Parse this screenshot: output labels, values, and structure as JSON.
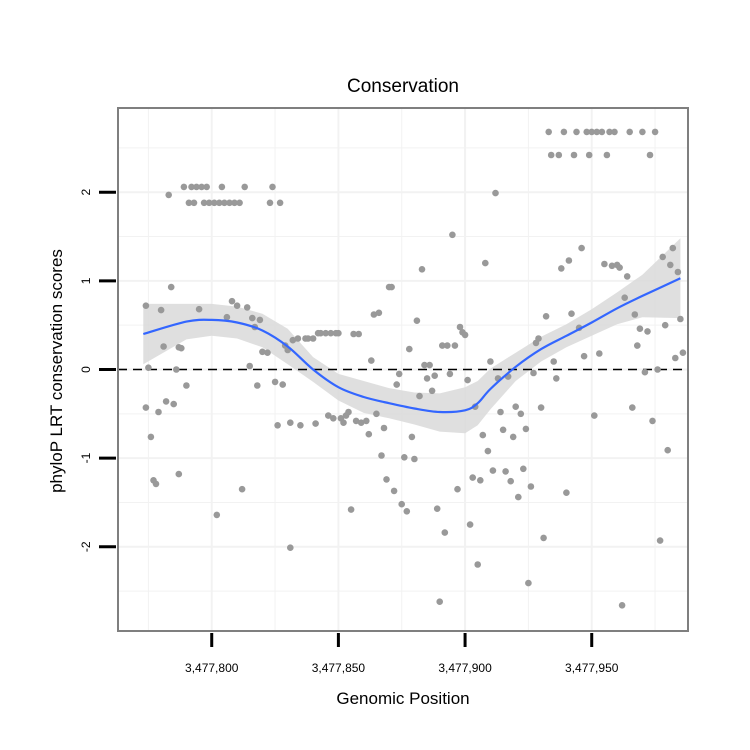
{
  "chart_data": {
    "type": "scatter",
    "title": "Conservation",
    "xlabel": "Genomic Position",
    "ylabel": "phyloP LRT conservation scores",
    "xlim": [
      3477763,
      3477988
    ],
    "ylim": [
      -2.95,
      2.95
    ],
    "x_ticks": [
      3477800,
      3477850,
      3477900,
      3477950
    ],
    "x_tick_labels": [
      "3,477,800",
      "3,477,850",
      "3,477,900",
      "3,477,950"
    ],
    "y_ticks": [
      -2,
      -1,
      0,
      1,
      2
    ],
    "y_tick_labels": [
      "-2",
      "-1",
      "0",
      "1",
      "2"
    ],
    "grid": true,
    "reference_line": {
      "y": 0,
      "style": "dashed"
    },
    "colors": {
      "points": "#999999",
      "smooth": "#3366ff",
      "band": "#d9d9d9",
      "panel_border": "#7f7f7f",
      "grid": "#f2f2f2"
    },
    "points": [
      [
        3477774,
        0.72
      ],
      [
        3477774,
        -0.43
      ],
      [
        3477775,
        0.02
      ],
      [
        3477776,
        -0.76
      ],
      [
        3477777,
        -1.25
      ],
      [
        3477778,
        -1.29
      ],
      [
        3477779,
        -0.48
      ],
      [
        3477780,
        0.67
      ],
      [
        3477781,
        0.26
      ],
      [
        3477782,
        -0.36
      ],
      [
        3477783,
        1.97
      ],
      [
        3477784,
        0.93
      ],
      [
        3477785,
        -0.39
      ],
      [
        3477786,
        0.0
      ],
      [
        3477787,
        0.25
      ],
      [
        3477787,
        -1.18
      ],
      [
        3477788,
        0.24
      ],
      [
        3477789,
        2.06
      ],
      [
        3477790,
        -0.18
      ],
      [
        3477791,
        1.88
      ],
      [
        3477792,
        2.06
      ],
      [
        3477793,
        1.88
      ],
      [
        3477794,
        2.06
      ],
      [
        3477795,
        0.68
      ],
      [
        3477796,
        2.06
      ],
      [
        3477797,
        1.88
      ],
      [
        3477798,
        2.06
      ],
      [
        3477799,
        1.88
      ],
      [
        3477801,
        1.88
      ],
      [
        3477802,
        -1.64
      ],
      [
        3477803,
        1.88
      ],
      [
        3477804,
        2.06
      ],
      [
        3477805,
        1.88
      ],
      [
        3477806,
        0.59
      ],
      [
        3477807,
        1.88
      ],
      [
        3477808,
        0.77
      ],
      [
        3477809,
        1.88
      ],
      [
        3477810,
        0.72
      ],
      [
        3477811,
        1.88
      ],
      [
        3477812,
        -1.35
      ],
      [
        3477813,
        2.06
      ],
      [
        3477814,
        0.7
      ],
      [
        3477815,
        0.04
      ],
      [
        3477816,
        0.58
      ],
      [
        3477817,
        0.48
      ],
      [
        3477818,
        -0.18
      ],
      [
        3477819,
        0.56
      ],
      [
        3477820,
        0.2
      ],
      [
        3477822,
        0.19
      ],
      [
        3477823,
        1.88
      ],
      [
        3477824,
        2.06
      ],
      [
        3477825,
        -0.14
      ],
      [
        3477826,
        -0.63
      ],
      [
        3477827,
        1.88
      ],
      [
        3477828,
        -0.17
      ],
      [
        3477829,
        0.27
      ],
      [
        3477830,
        0.22
      ],
      [
        3477831,
        -2.01
      ],
      [
        3477831,
        -0.6
      ],
      [
        3477832,
        0.33
      ],
      [
        3477834,
        0.35
      ],
      [
        3477835,
        -0.63
      ],
      [
        3477837,
        0.35
      ],
      [
        3477838,
        0.35
      ],
      [
        3477840,
        0.35
      ],
      [
        3477841,
        -0.61
      ],
      [
        3477842,
        0.41
      ],
      [
        3477843,
        0.41
      ],
      [
        3477845,
        0.41
      ],
      [
        3477846,
        -0.52
      ],
      [
        3477847,
        0.41
      ],
      [
        3477848,
        -0.55
      ],
      [
        3477849,
        0.41
      ],
      [
        3477850,
        0.41
      ],
      [
        3477851,
        -0.55
      ],
      [
        3477852,
        -0.6
      ],
      [
        3477853,
        -0.52
      ],
      [
        3477854,
        -0.48
      ],
      [
        3477855,
        -1.58
      ],
      [
        3477856,
        0.4
      ],
      [
        3477857,
        -0.58
      ],
      [
        3477858,
        0.4
      ],
      [
        3477859,
        -0.6
      ],
      [
        3477861,
        -0.58
      ],
      [
        3477862,
        -0.73
      ],
      [
        3477863,
        0.1
      ],
      [
        3477864,
        0.62
      ],
      [
        3477865,
        -0.5
      ],
      [
        3477866,
        0.64
      ],
      [
        3477867,
        -0.97
      ],
      [
        3477868,
        -0.66
      ],
      [
        3477869,
        -1.24
      ],
      [
        3477870,
        0.93
      ],
      [
        3477871,
        0.93
      ],
      [
        3477872,
        -1.37
      ],
      [
        3477873,
        -0.17
      ],
      [
        3477874,
        -0.05
      ],
      [
        3477875,
        -1.52
      ],
      [
        3477876,
        -0.99
      ],
      [
        3477877,
        -1.6
      ],
      [
        3477878,
        0.23
      ],
      [
        3477879,
        -0.76
      ],
      [
        3477880,
        -1.01
      ],
      [
        3477881,
        0.55
      ],
      [
        3477882,
        -0.3
      ],
      [
        3477883,
        1.13
      ],
      [
        3477884,
        0.05
      ],
      [
        3477885,
        -0.1
      ],
      [
        3477886,
        0.05
      ],
      [
        3477887,
        -0.24
      ],
      [
        3477888,
        -0.07
      ],
      [
        3477889,
        -1.57
      ],
      [
        3477890,
        -2.62
      ],
      [
        3477891,
        0.27
      ],
      [
        3477892,
        -1.84
      ],
      [
        3477893,
        0.27
      ],
      [
        3477894,
        -0.05
      ],
      [
        3477895,
        1.52
      ],
      [
        3477896,
        0.27
      ],
      [
        3477897,
        -1.35
      ],
      [
        3477898,
        0.48
      ],
      [
        3477899,
        0.42
      ],
      [
        3477900,
        0.39
      ],
      [
        3477901,
        -0.12
      ],
      [
        3477902,
        -1.75
      ],
      [
        3477903,
        -1.22
      ],
      [
        3477904,
        -0.42
      ],
      [
        3477905,
        -2.2
      ],
      [
        3477906,
        -1.25
      ],
      [
        3477907,
        -0.74
      ],
      [
        3477908,
        1.2
      ],
      [
        3477909,
        -0.92
      ],
      [
        3477910,
        0.09
      ],
      [
        3477911,
        -1.14
      ],
      [
        3477912,
        1.99
      ],
      [
        3477913,
        -0.1
      ],
      [
        3477914,
        -0.48
      ],
      [
        3477915,
        -0.68
      ],
      [
        3477916,
        -1.15
      ],
      [
        3477917,
        -0.08
      ],
      [
        3477918,
        -1.26
      ],
      [
        3477919,
        -0.76
      ],
      [
        3477920,
        -0.42
      ],
      [
        3477921,
        -1.44
      ],
      [
        3477922,
        -0.5
      ],
      [
        3477923,
        -1.12
      ],
      [
        3477924,
        -0.67
      ],
      [
        3477925,
        -2.41
      ],
      [
        3477926,
        -1.32
      ],
      [
        3477927,
        -0.04
      ],
      [
        3477928,
        0.3
      ],
      [
        3477929,
        0.35
      ],
      [
        3477930,
        -0.43
      ],
      [
        3477931,
        -1.9
      ],
      [
        3477932,
        0.6
      ],
      [
        3477933,
        2.68
      ],
      [
        3477934,
        2.42
      ],
      [
        3477935,
        0.09
      ],
      [
        3477936,
        -0.1
      ],
      [
        3477937,
        2.42
      ],
      [
        3477938,
        1.14
      ],
      [
        3477939,
        2.68
      ],
      [
        3477940,
        -1.39
      ],
      [
        3477941,
        1.23
      ],
      [
        3477942,
        0.63
      ],
      [
        3477943,
        2.42
      ],
      [
        3477944,
        2.68
      ],
      [
        3477945,
        0.47
      ],
      [
        3477946,
        1.37
      ],
      [
        3477947,
        0.15
      ],
      [
        3477948,
        2.68
      ],
      [
        3477949,
        2.42
      ],
      [
        3477950,
        2.68
      ],
      [
        3477951,
        -0.52
      ],
      [
        3477952,
        2.68
      ],
      [
        3477953,
        0.18
      ],
      [
        3477954,
        2.68
      ],
      [
        3477955,
        1.19
      ],
      [
        3477956,
        2.42
      ],
      [
        3477957,
        2.68
      ],
      [
        3477958,
        1.17
      ],
      [
        3477959,
        2.68
      ],
      [
        3477960,
        1.18
      ],
      [
        3477961,
        1.15
      ],
      [
        3477962,
        -2.66
      ],
      [
        3477963,
        0.81
      ],
      [
        3477964,
        1.05
      ],
      [
        3477965,
        2.68
      ],
      [
        3477966,
        -0.43
      ],
      [
        3477967,
        0.62
      ],
      [
        3477968,
        0.27
      ],
      [
        3477969,
        0.46
      ],
      [
        3477970,
        2.68
      ],
      [
        3477971,
        -0.03
      ],
      [
        3477972,
        0.43
      ],
      [
        3477973,
        2.42
      ],
      [
        3477974,
        -0.58
      ],
      [
        3477975,
        2.68
      ],
      [
        3477976,
        0.0
      ],
      [
        3477977,
        -1.93
      ],
      [
        3477978,
        1.27
      ],
      [
        3477979,
        0.5
      ],
      [
        3477980,
        -0.91
      ],
      [
        3477981,
        1.18
      ],
      [
        3477982,
        1.37
      ],
      [
        3477983,
        0.13
      ],
      [
        3477984,
        1.1
      ],
      [
        3477985,
        0.57
      ],
      [
        3477986,
        0.19
      ]
    ],
    "smooth": {
      "x": [
        3477773,
        3477790,
        3477800,
        3477810,
        3477820,
        3477830,
        3477840,
        3477850,
        3477860,
        3477870,
        3477880,
        3477890,
        3477900,
        3477905,
        3477910,
        3477920,
        3477930,
        3477940,
        3477950,
        3477960,
        3477970,
        3477985
      ],
      "y": [
        0.4,
        0.54,
        0.56,
        0.53,
        0.44,
        0.26,
        0.0,
        -0.2,
        -0.31,
        -0.38,
        -0.44,
        -0.48,
        -0.46,
        -0.38,
        -0.22,
        0.03,
        0.23,
        0.38,
        0.53,
        0.69,
        0.83,
        1.03
      ],
      "lower": [
        0.06,
        0.34,
        0.38,
        0.35,
        0.25,
        0.06,
        -0.14,
        -0.35,
        -0.49,
        -0.55,
        -0.62,
        -0.7,
        -0.72,
        -0.63,
        -0.45,
        -0.13,
        0.09,
        0.25,
        0.38,
        0.51,
        0.59,
        0.58
      ],
      "upper": [
        0.74,
        0.74,
        0.74,
        0.71,
        0.63,
        0.46,
        0.14,
        -0.05,
        -0.13,
        -0.21,
        -0.26,
        -0.27,
        -0.2,
        -0.13,
        0.01,
        0.19,
        0.37,
        0.51,
        0.68,
        0.87,
        1.07,
        1.48
      ]
    }
  }
}
